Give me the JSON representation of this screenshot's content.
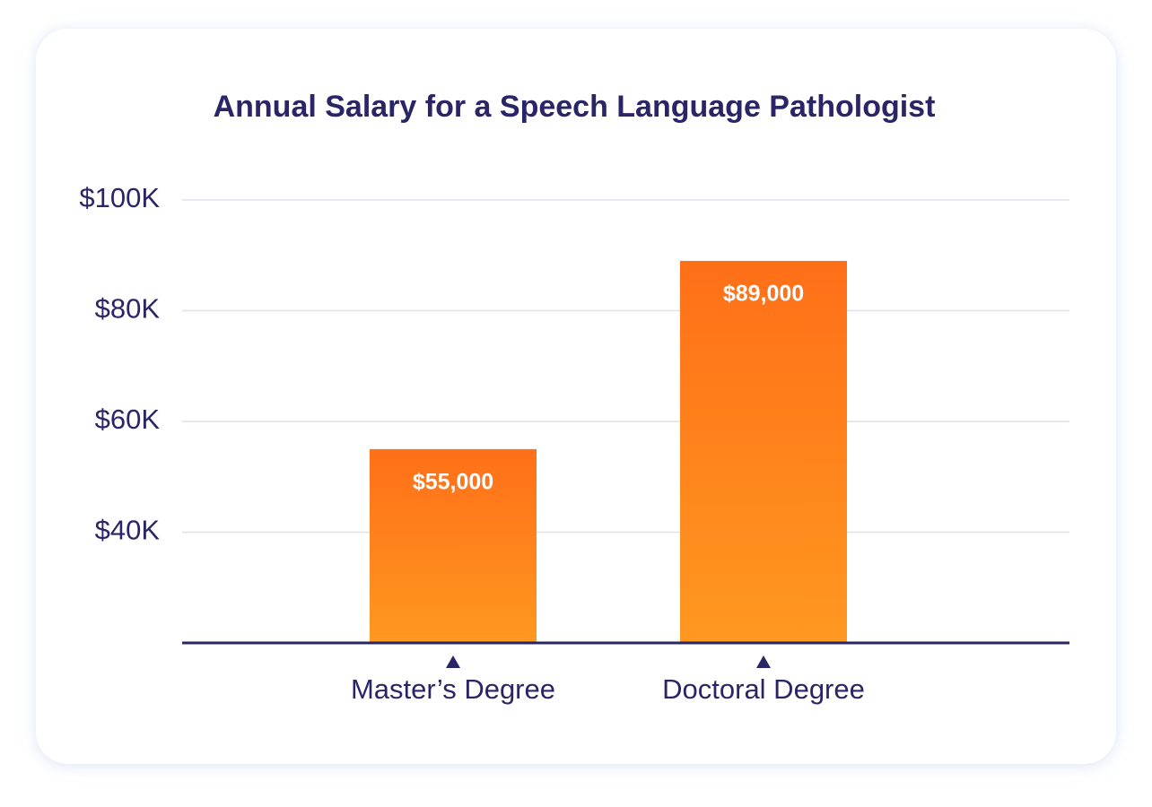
{
  "chart_data": {
    "type": "bar",
    "title": "Annual Salary for a Speech Language Pathologist",
    "categories": [
      "Master’s Degree",
      "Doctoral Degree"
    ],
    "values": [
      55000,
      89000
    ],
    "value_labels": [
      "$55,000",
      "$89,000"
    ],
    "color": "#ff6f18",
    "ylim": [
      20000,
      100000
    ],
    "yticks": [
      {
        "value": 40000,
        "label": "$40K"
      },
      {
        "value": 60000,
        "label": "$60K"
      },
      {
        "value": 80000,
        "label": "$80K"
      },
      {
        "value": 100000,
        "label": "$100K"
      }
    ],
    "grid": true
  }
}
